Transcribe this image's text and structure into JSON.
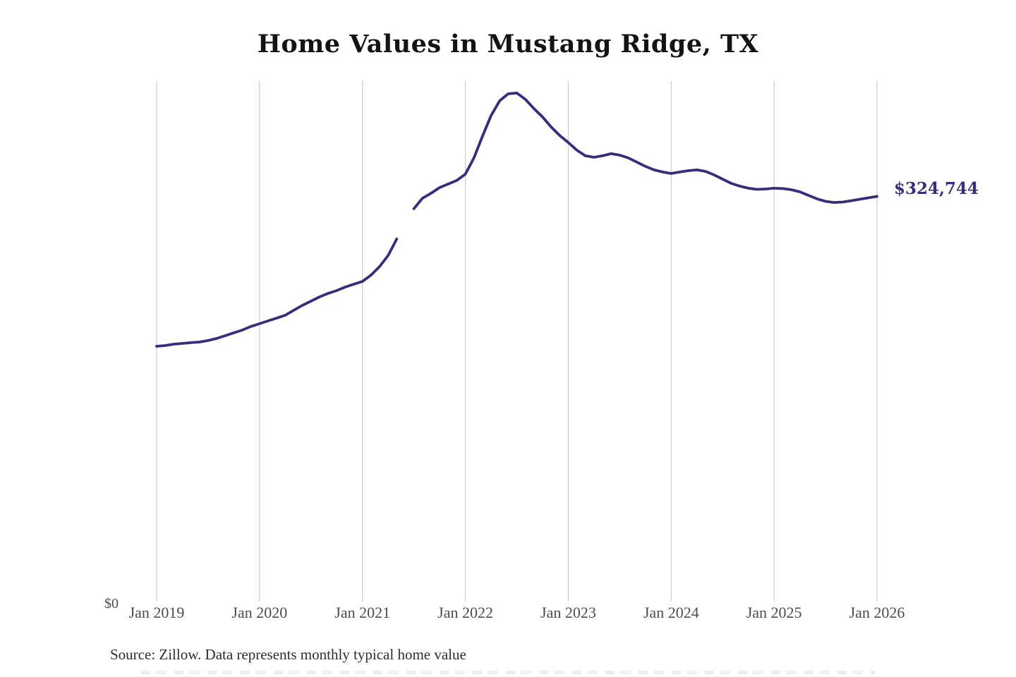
{
  "page": {
    "background": "#ffffff"
  },
  "title": {
    "text": "Home Values in Mustang Ridge, TX"
  },
  "footer": {
    "source_text": "Source: Zillow. Data represents monthly typical home value"
  },
  "chart": {
    "y_zero_label": "$0",
    "end_label": "$324,744",
    "line_color": "#342e7d",
    "gridline_color": "#cccccc",
    "axis_label_color": "#4d4d4d",
    "x_tick_labels": [
      "Jan 2019",
      "Jan 2020",
      "Jan 2021",
      "Jan 2022",
      "Jan 2023",
      "Jan 2024",
      "Jan 2025",
      "Jan 2026"
    ]
  },
  "chart_data": {
    "type": "line",
    "title": "Home Values in Mustang Ridge, TX",
    "xlabel": "",
    "ylabel": "",
    "ylim": [
      0,
      430000
    ],
    "grid": "vertical-only",
    "x_ticks": [
      "Jan 2019",
      "Jan 2020",
      "Jan 2021",
      "Jan 2022",
      "Jan 2023",
      "Jan 2024",
      "Jan 2025",
      "Jan 2026"
    ],
    "end_annotation": "$324,744",
    "gaps": [
      "Jun 2021"
    ],
    "x": [
      "Jan 2019",
      "Feb 2019",
      "Mar 2019",
      "Apr 2019",
      "May 2019",
      "Jun 2019",
      "Jul 2019",
      "Aug 2019",
      "Sep 2019",
      "Oct 2019",
      "Nov 2019",
      "Dec 2019",
      "Jan 2020",
      "Feb 2020",
      "Mar 2020",
      "Apr 2020",
      "May 2020",
      "Jun 2020",
      "Jul 2020",
      "Aug 2020",
      "Sep 2020",
      "Oct 2020",
      "Nov 2020",
      "Dec 2020",
      "Jan 2021",
      "Feb 2021",
      "Mar 2021",
      "Apr 2021",
      "May 2021",
      "Jun 2021",
      "Jul 2021",
      "Aug 2021",
      "Sep 2021",
      "Oct 2021",
      "Nov 2021",
      "Dec 2021",
      "Jan 2022",
      "Feb 2022",
      "Mar 2022",
      "Apr 2022",
      "May 2022",
      "Jun 2022",
      "Jul 2022",
      "Aug 2022",
      "Sep 2022",
      "Oct 2022",
      "Nov 2022",
      "Dec 2022",
      "Jan 2023",
      "Feb 2023",
      "Mar 2023",
      "Apr 2023",
      "May 2023",
      "Jun 2023",
      "Jul 2023",
      "Aug 2023",
      "Sep 2023",
      "Oct 2023",
      "Nov 2023",
      "Dec 2023",
      "Jan 2024",
      "Feb 2024",
      "Mar 2024",
      "Apr 2024",
      "May 2024",
      "Jun 2024",
      "Jul 2024",
      "Aug 2024",
      "Sep 2024",
      "Oct 2024",
      "Nov 2024",
      "Dec 2024",
      "Jan 2025",
      "Feb 2025",
      "Mar 2025",
      "Apr 2025",
      "May 2025",
      "Jun 2025",
      "Jul 2025",
      "Aug 2025",
      "Sep 2025",
      "Oct 2025",
      "Nov 2025",
      "Dec 2025",
      "Jan 2026"
    ],
    "series": [
      {
        "name": "Monthly typical home value",
        "values": [
          204600,
          205200,
          206300,
          206900,
          207500,
          208000,
          209200,
          210900,
          213100,
          215400,
          217600,
          220500,
          222700,
          225000,
          227200,
          229500,
          233500,
          237400,
          240800,
          244200,
          247000,
          249300,
          252100,
          254400,
          256600,
          261700,
          268500,
          277500,
          290600,
          null,
          314900,
          323300,
          327300,
          331800,
          334700,
          337500,
          342600,
          355600,
          373100,
          389500,
          401400,
          407000,
          407600,
          402500,
          395100,
          388400,
          380400,
          373600,
          368000,
          361800,
          357300,
          356100,
          357300,
          359000,
          357800,
          355600,
          352200,
          348800,
          346000,
          344300,
          343100,
          344300,
          345400,
          346000,
          344800,
          342000,
          338600,
          335200,
          333000,
          331300,
          330400,
          330700,
          331300,
          331000,
          330100,
          328400,
          325600,
          322800,
          320800,
          319900,
          320200,
          321300,
          322500,
          323600,
          324744
        ]
      }
    ]
  }
}
